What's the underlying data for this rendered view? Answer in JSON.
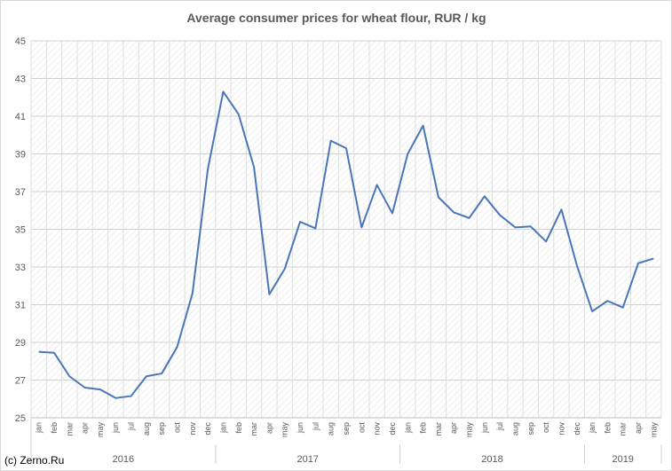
{
  "credit": "(c) Zerno.Ru",
  "chart_data": {
    "type": "line",
    "title": "Average consumer prices for wheat flour, RUR / kg",
    "xlabel": "",
    "ylabel": "",
    "ylim": [
      25,
      45
    ],
    "yticks": [
      25,
      27,
      29,
      31,
      33,
      35,
      37,
      39,
      41,
      43,
      45
    ],
    "grid": true,
    "legend": "none",
    "line_color": "#4a76b8",
    "categories": [
      "jan",
      "feb",
      "mar",
      "apr",
      "may",
      "jun",
      "jul",
      "aug",
      "sep",
      "oct",
      "nov",
      "dec",
      "jan",
      "feb",
      "mar",
      "apr",
      "may",
      "jun",
      "jul",
      "aug",
      "sep",
      "oct",
      "nov",
      "dec",
      "jan",
      "feb",
      "mar",
      "apr",
      "may",
      "jun",
      "jul",
      "aug",
      "sep",
      "oct",
      "nov",
      "dec",
      "jan",
      "feb",
      "mar",
      "apr",
      "may"
    ],
    "year_groups": [
      {
        "label": "2016",
        "count": 12
      },
      {
        "label": "2017",
        "count": 12
      },
      {
        "label": "2018",
        "count": 12
      },
      {
        "label": "2019",
        "count": 5
      }
    ],
    "values": [
      28.5,
      28.45,
      27.2,
      26.6,
      26.5,
      26.05,
      26.15,
      27.2,
      27.35,
      28.75,
      31.6,
      38.2,
      42.3,
      41.1,
      38.3,
      31.55,
      32.9,
      35.4,
      35.05,
      39.7,
      39.3,
      35.1,
      37.35,
      35.85,
      39.0,
      40.5,
      36.7,
      35.9,
      35.6,
      36.75,
      35.75,
      35.1,
      35.15,
      34.35,
      36.05,
      33.1,
      30.65,
      31.2,
      30.85,
      33.2,
      33.45
    ]
  }
}
